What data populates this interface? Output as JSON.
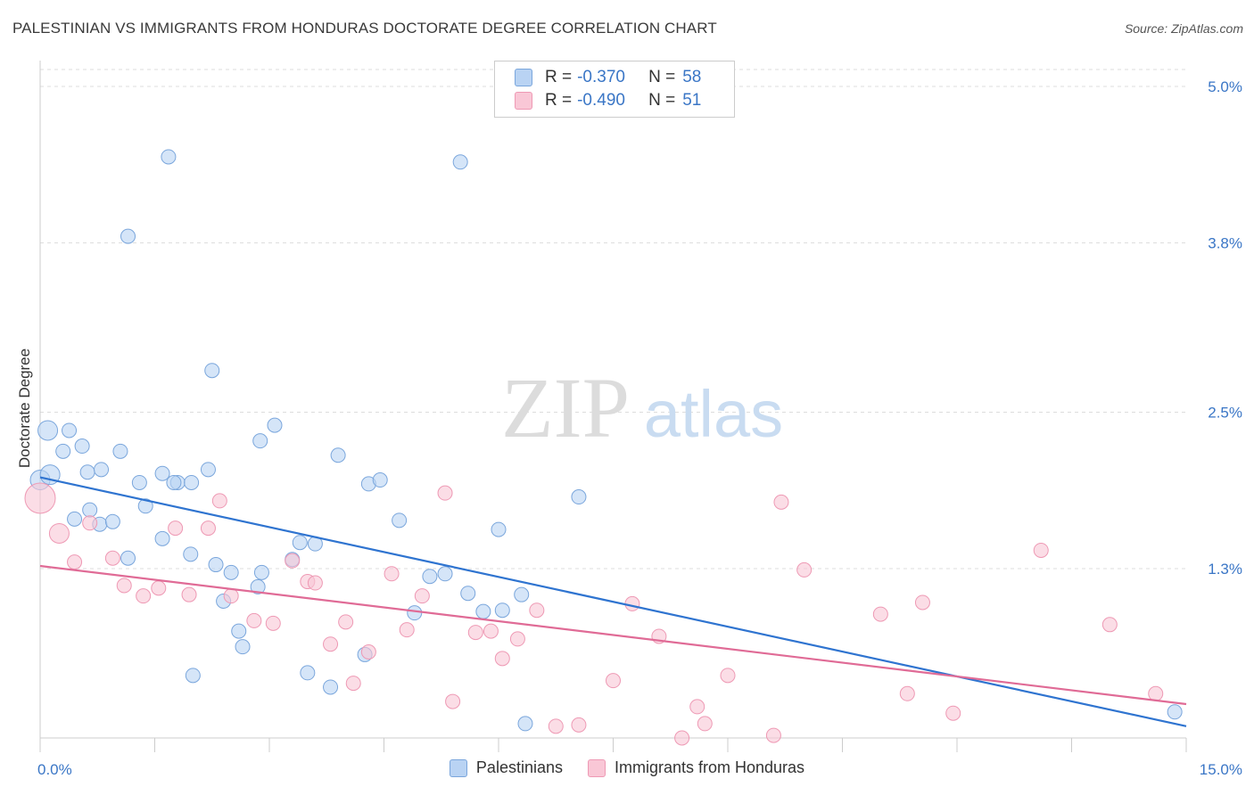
{
  "header": {
    "title": "PALESTINIAN VS IMMIGRANTS FROM HONDURAS DOCTORATE DEGREE CORRELATION CHART",
    "source": "Source: ZipAtlas.com"
  },
  "watermark": {
    "zip": "ZIP",
    "atlas": "atlas"
  },
  "legend": {
    "rows": [
      {
        "r_label": "R =",
        "r_value": "-0.370",
        "n_label": "N =",
        "n_value": "58",
        "fill": "#b9d3f3",
        "stroke": "#7aa6dc"
      },
      {
        "r_label": "R =",
        "r_value": "-0.490",
        "n_label": "N =",
        "n_value": "51",
        "fill": "#f9c7d6",
        "stroke": "#ee99b4"
      }
    ]
  },
  "bottom_legend": [
    {
      "label": "Palestinians",
      "fill": "#b9d3f3",
      "stroke": "#7aa6dc"
    },
    {
      "label": "Immigrants from Honduras",
      "fill": "#f9c7d6",
      "stroke": "#ee99b4"
    }
  ],
  "chart_data": {
    "type": "scatter",
    "title": "PALESTINIAN VS IMMIGRANTS FROM HONDURAS DOCTORATE DEGREE CORRELATION CHART",
    "xlabel": "",
    "ylabel": "Doctorate Degree",
    "xlim": [
      0,
      15
    ],
    "ylim": [
      0,
      5.0
    ],
    "x_tick_labels": [
      "0.0%",
      "15.0%"
    ],
    "y_ticks": [
      1.3,
      2.5,
      3.8,
      5.0
    ],
    "y_tick_labels": [
      "1.3%",
      "2.5%",
      "3.8%",
      "5.0%"
    ],
    "grid": true,
    "legend_position": "top-center",
    "series": [
      {
        "name": "Palestinians",
        "color": "#7aa6dc",
        "fill": "#b9d3f3",
        "line_color": "#2f74d0",
        "trend": [
          [
            0,
            2.0
          ],
          [
            15,
            0.09
          ]
        ],
        "points": [
          [
            0.0,
            1.98
          ],
          [
            0.13,
            2.02
          ],
          [
            0.1,
            2.36
          ],
          [
            0.3,
            2.2
          ],
          [
            0.38,
            2.36
          ],
          [
            0.55,
            2.24
          ],
          [
            0.45,
            1.68
          ],
          [
            0.65,
            1.75
          ],
          [
            0.78,
            1.64
          ],
          [
            0.95,
            1.66
          ],
          [
            0.62,
            2.04
          ],
          [
            0.8,
            2.06
          ],
          [
            1.05,
            2.2
          ],
          [
            1.3,
            1.96
          ],
          [
            1.15,
            1.38
          ],
          [
            1.38,
            1.78
          ],
          [
            1.6,
            2.03
          ],
          [
            1.8,
            1.96
          ],
          [
            1.75,
            1.96
          ],
          [
            2.2,
            2.06
          ],
          [
            1.6,
            1.53
          ],
          [
            1.97,
            1.41
          ],
          [
            1.15,
            3.85
          ],
          [
            1.68,
            4.46
          ],
          [
            2.25,
            2.82
          ],
          [
            2.88,
            2.28
          ],
          [
            3.07,
            2.4
          ],
          [
            2.3,
            1.33
          ],
          [
            2.5,
            1.27
          ],
          [
            2.4,
            1.05
          ],
          [
            2.6,
            0.82
          ],
          [
            2.65,
            0.7
          ],
          [
            2.9,
            1.27
          ],
          [
            2.85,
            1.16
          ],
          [
            3.3,
            1.37
          ],
          [
            3.4,
            1.5
          ],
          [
            3.6,
            1.49
          ],
          [
            3.5,
            0.5
          ],
          [
            3.9,
            2.17
          ],
          [
            3.8,
            0.39
          ],
          [
            4.25,
            0.64
          ],
          [
            4.3,
            1.95
          ],
          [
            4.45,
            1.98
          ],
          [
            4.7,
            1.67
          ],
          [
            4.9,
            0.96
          ],
          [
            5.1,
            1.24
          ],
          [
            5.3,
            1.26
          ],
          [
            5.5,
            4.42
          ],
          [
            5.6,
            1.11
          ],
          [
            5.8,
            0.97
          ],
          [
            6.05,
            0.98
          ],
          [
            6.0,
            1.6
          ],
          [
            6.3,
            1.1
          ],
          [
            6.35,
            0.11
          ],
          [
            7.05,
            1.85
          ],
          [
            2.0,
            0.48
          ],
          [
            1.98,
            1.96
          ],
          [
            14.85,
            0.2
          ]
        ]
      },
      {
        "name": "Immigrants from Honduras",
        "color": "#ee99b4",
        "fill": "#f9c7d6",
        "line_color": "#e06b96",
        "trend": [
          [
            0,
            1.32
          ],
          [
            15,
            0.26
          ]
        ],
        "points": [
          [
            0.0,
            1.84
          ],
          [
            0.25,
            1.57
          ],
          [
            0.45,
            1.35
          ],
          [
            0.65,
            1.65
          ],
          [
            0.95,
            1.38
          ],
          [
            1.1,
            1.17
          ],
          [
            1.35,
            1.09
          ],
          [
            1.55,
            1.15
          ],
          [
            1.77,
            1.61
          ],
          [
            1.95,
            1.1
          ],
          [
            2.2,
            1.61
          ],
          [
            2.35,
            1.82
          ],
          [
            2.5,
            1.09
          ],
          [
            2.8,
            0.9
          ],
          [
            3.05,
            0.88
          ],
          [
            3.3,
            1.36
          ],
          [
            3.5,
            1.2
          ],
          [
            3.6,
            1.19
          ],
          [
            3.8,
            0.72
          ],
          [
            4.0,
            0.89
          ],
          [
            4.1,
            0.42
          ],
          [
            4.3,
            0.66
          ],
          [
            4.6,
            1.26
          ],
          [
            4.8,
            0.83
          ],
          [
            5.0,
            1.09
          ],
          [
            5.4,
            0.28
          ],
          [
            5.7,
            0.81
          ],
          [
            5.9,
            0.82
          ],
          [
            6.05,
            0.61
          ],
          [
            6.25,
            0.76
          ],
          [
            6.5,
            0.98
          ],
          [
            6.75,
            0.09
          ],
          [
            7.05,
            0.1
          ],
          [
            7.5,
            0.44
          ],
          [
            7.75,
            1.03
          ],
          [
            8.1,
            0.78
          ],
          [
            8.4,
            0.0
          ],
          [
            8.6,
            0.24
          ],
          [
            8.7,
            0.11
          ],
          [
            9.0,
            0.48
          ],
          [
            9.6,
            0.02
          ],
          [
            9.7,
            1.81
          ],
          [
            10.0,
            1.29
          ],
          [
            11.0,
            0.95
          ],
          [
            11.35,
            0.34
          ],
          [
            11.55,
            1.04
          ],
          [
            11.95,
            0.19
          ],
          [
            13.1,
            1.44
          ],
          [
            14.0,
            0.87
          ],
          [
            14.6,
            0.34
          ],
          [
            5.3,
            1.88
          ]
        ]
      }
    ]
  }
}
